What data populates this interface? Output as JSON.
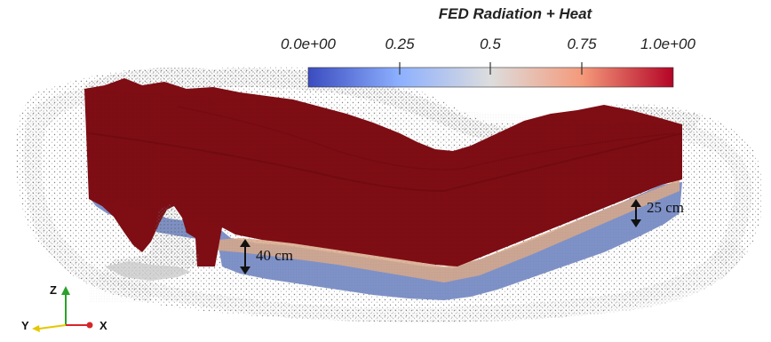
{
  "legend": {
    "title": "FED Radiation + Heat",
    "ticks": [
      {
        "label": "0.0e+00",
        "value": 0.0
      },
      {
        "label": "0.25",
        "value": 0.25
      },
      {
        "label": "0.5",
        "value": 0.5
      },
      {
        "label": "0.75",
        "value": 0.75
      },
      {
        "label": "1.0e+00",
        "value": 1.0
      }
    ],
    "colors": {
      "low": "#3b4cc0",
      "mid": "#dddddd",
      "high": "#b40426"
    }
  },
  "annotations": {
    "depth_left": "40 cm",
    "depth_right": "25 cm"
  },
  "axes": {
    "z": "Z",
    "y": "Y",
    "x": "X",
    "colors": {
      "z": "#2ca02c",
      "y": "#e6c700",
      "x": "#d62728"
    }
  },
  "colors": {
    "fill": "#7f0d14",
    "fill_dark": "#6a0a10",
    "bottom_blue": "#7f92c8",
    "transition": "#d9a98a",
    "points": "#6b6b6b"
  }
}
